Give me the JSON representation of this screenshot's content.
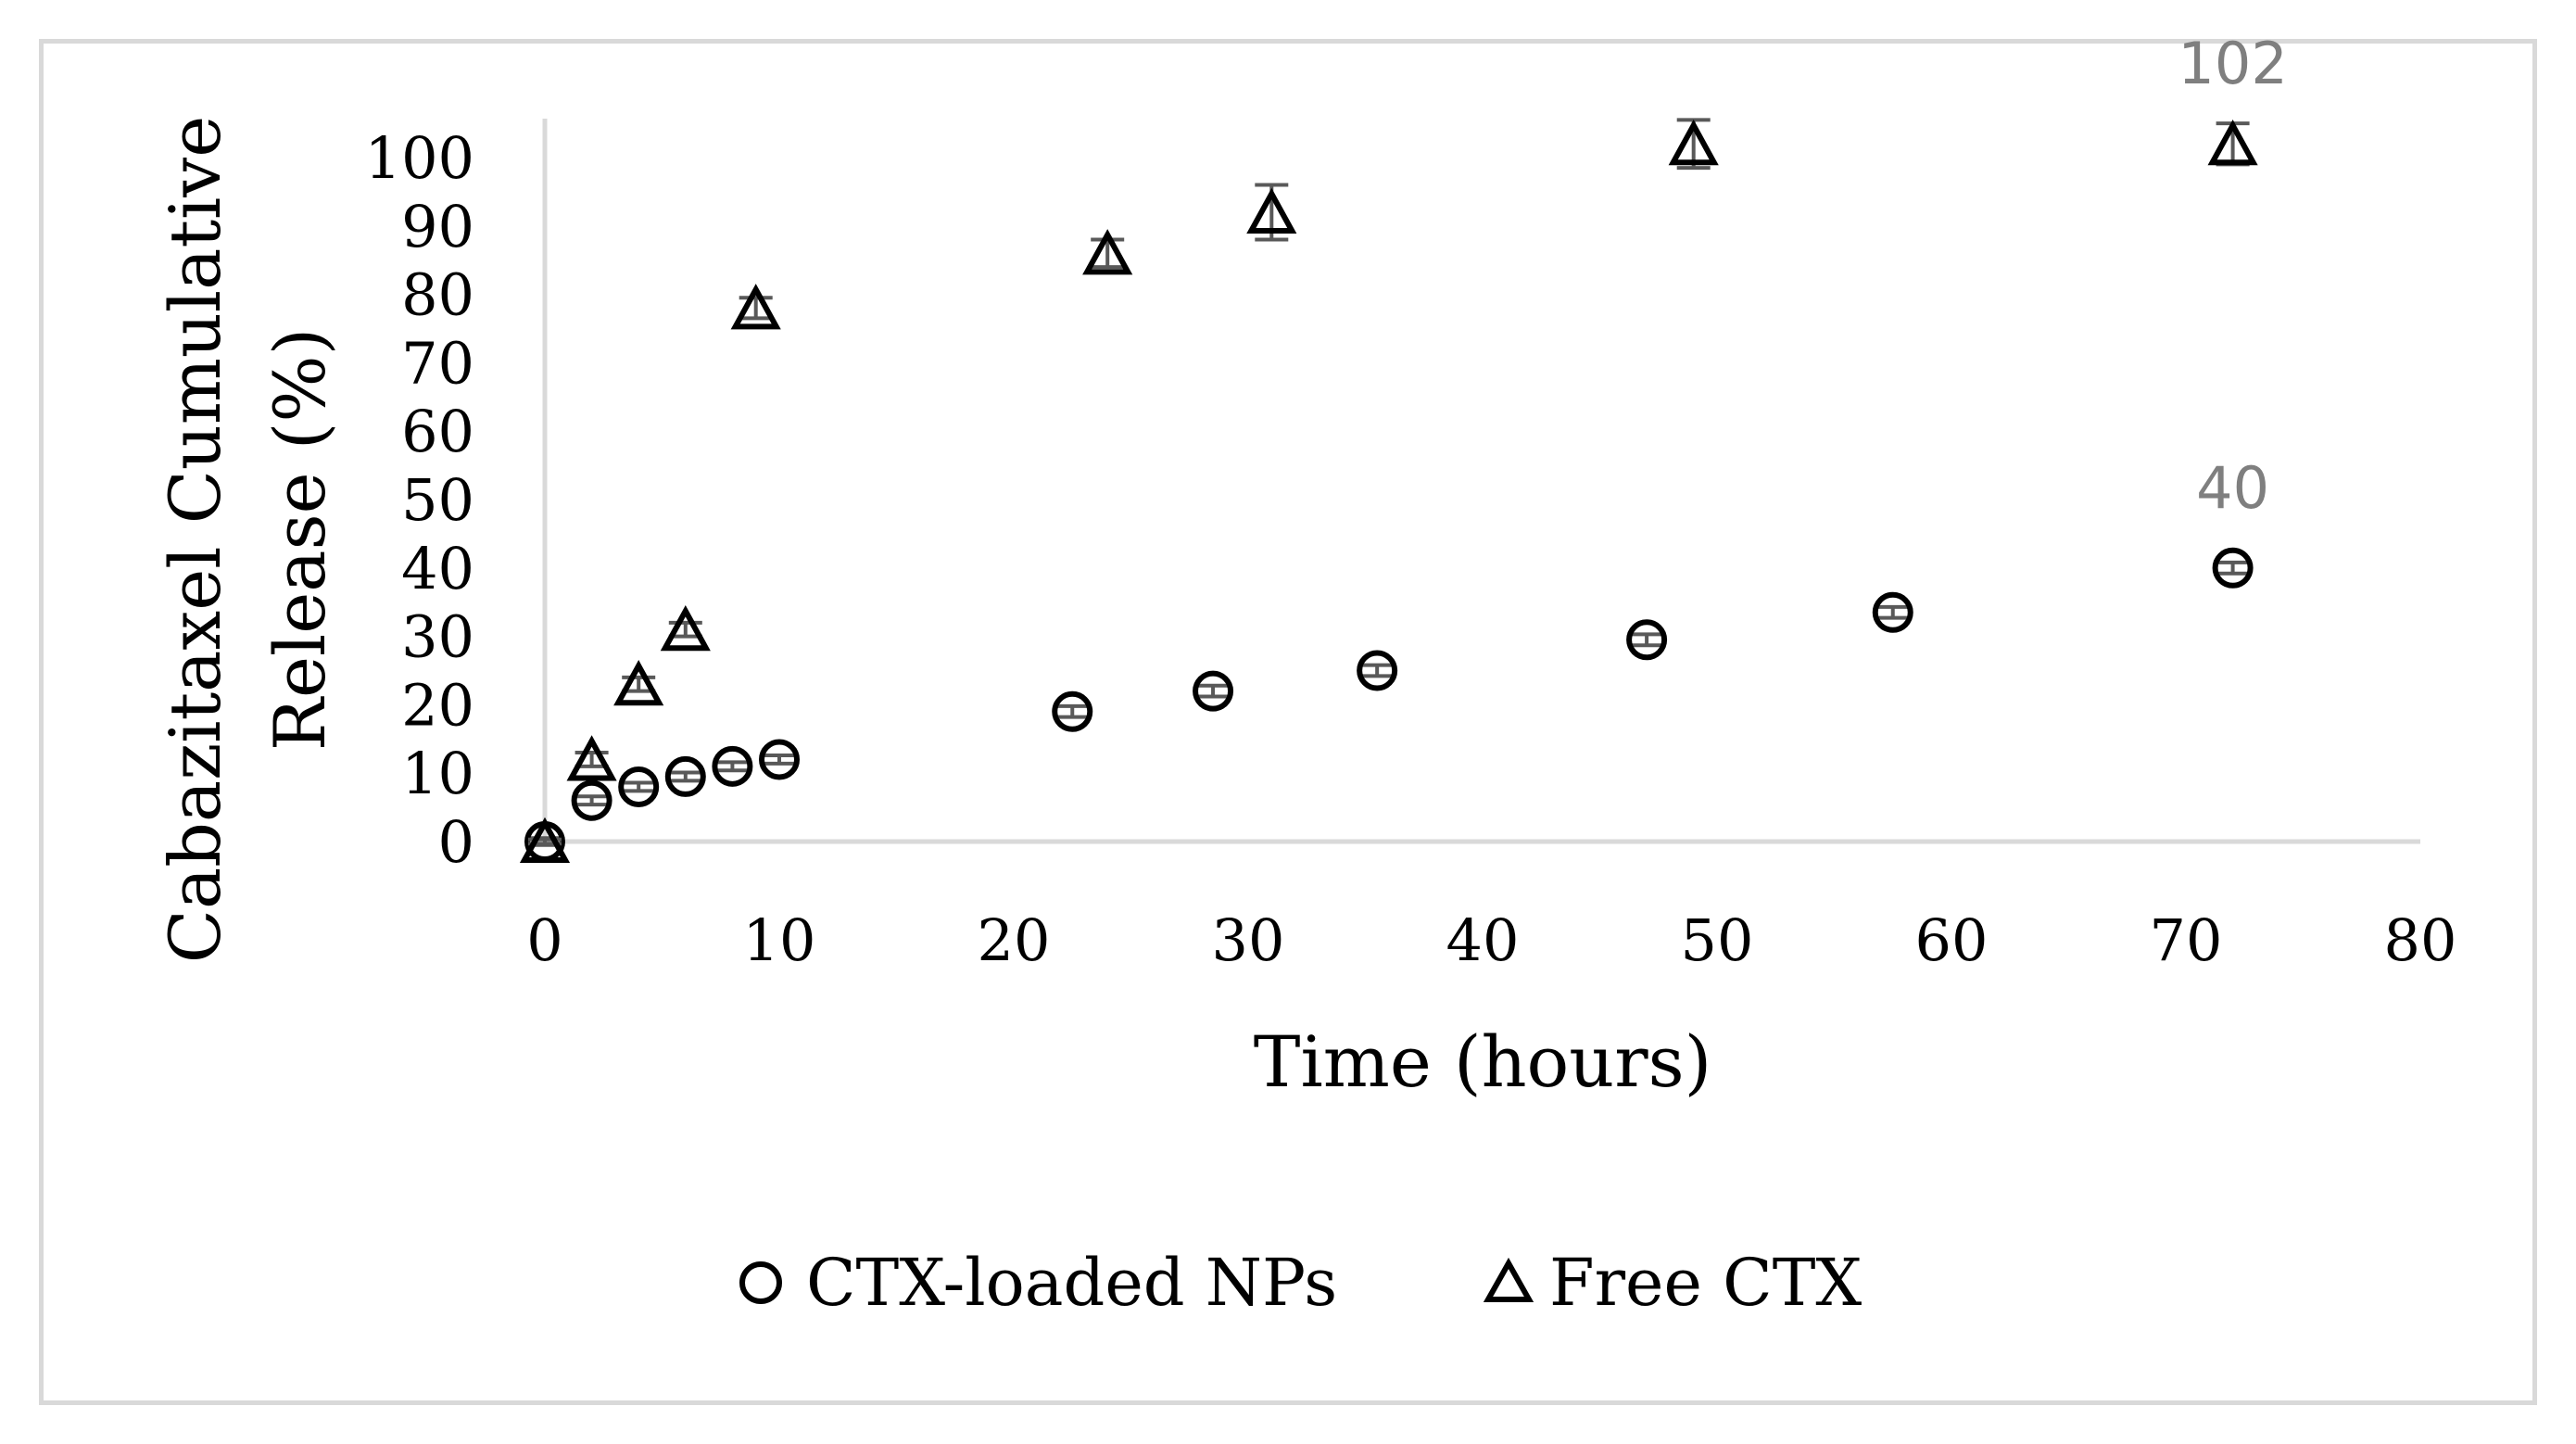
{
  "chart_data": {
    "type": "scatter",
    "xlabel": "Time (hours)",
    "ylabel": "Cabazitaxel Cumulative Release (%)",
    "ylabel_lines": [
      "Cabazitaxel Cumulative",
      "Release (%)"
    ],
    "xlim": [
      0,
      80
    ],
    "ylim": [
      0,
      100
    ],
    "x_ticks": [
      "0",
      "10",
      "20",
      "30",
      "40",
      "50",
      "60",
      "70",
      "80"
    ],
    "y_ticks": [
      "0",
      "10",
      "20",
      "30",
      "40",
      "50",
      "60",
      "70",
      "80",
      "90",
      "100"
    ],
    "x_tick_values": [
      0,
      10,
      20,
      30,
      40,
      50,
      60,
      70,
      80
    ],
    "y_tick_values": [
      0,
      10,
      20,
      30,
      40,
      50,
      60,
      70,
      80,
      90,
      100
    ],
    "grid": false,
    "legend_position": "bottom",
    "series": [
      {
        "name": "CTX-loaded NPs",
        "marker": "circle",
        "x": [
          0,
          2,
          4,
          6,
          8,
          10,
          22.5,
          28.5,
          35.5,
          47,
          57.5,
          72
        ],
        "y": [
          0,
          6,
          8,
          9.5,
          11,
          12,
          19,
          22,
          25,
          29.5,
          33.5,
          40
        ],
        "error": [
          0.5,
          0.6,
          0.6,
          0.6,
          0.6,
          0.6,
          0.8,
          0.8,
          0.8,
          0.8,
          0.8,
          0.8
        ]
      },
      {
        "name": "Free CTX",
        "marker": "triangle",
        "x": [
          0,
          2,
          4,
          6,
          9,
          24,
          31,
          49,
          72
        ],
        "y": [
          0,
          12,
          23,
          31,
          78,
          86,
          92,
          102,
          102
        ],
        "error": [
          0.3,
          1,
          1,
          1,
          1.5,
          2,
          4,
          3.5,
          3
        ]
      }
    ],
    "annotations": [
      {
        "series": 0,
        "x": 72,
        "y": 40,
        "text": "40"
      },
      {
        "series": 1,
        "x": 72,
        "y": 102,
        "text": "102"
      }
    ]
  }
}
